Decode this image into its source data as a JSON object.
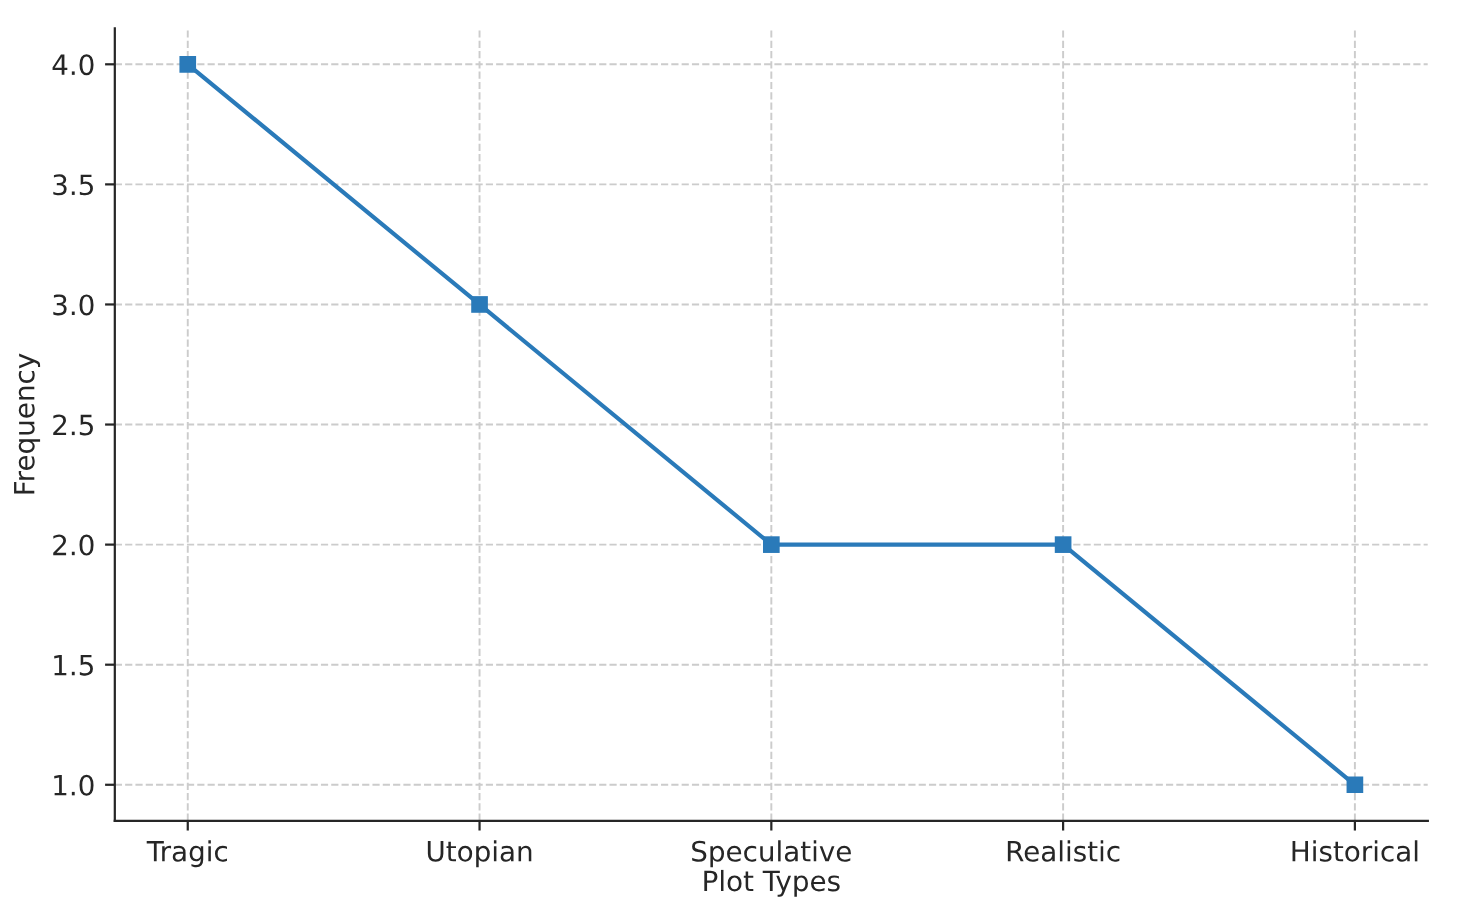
{
  "chart_data": {
    "type": "line",
    "xlabel": "Plot Types",
    "ylabel": "Frequency",
    "categories": [
      "Tragic",
      "Utopian",
      "Speculative",
      "Realistic",
      "Historical"
    ],
    "series": [
      {
        "color": "#2a7ab9",
        "values": [
          4,
          3,
          2,
          2,
          1
        ]
      }
    ],
    "ylim": [
      0.85,
      4.15
    ],
    "yticks": [
      {
        "value": 1,
        "label": "1.0"
      },
      {
        "value": 1.5,
        "label": "1.5"
      },
      {
        "value": 2,
        "label": "2.0"
      },
      {
        "value": 2.5,
        "label": "2.5"
      },
      {
        "value": 3,
        "label": "3.0"
      },
      {
        "value": 3.5,
        "label": "3.5"
      },
      {
        "value": 4,
        "label": "4.0"
      }
    ],
    "grid": true,
    "marker": "square",
    "line_style": "solid"
  }
}
